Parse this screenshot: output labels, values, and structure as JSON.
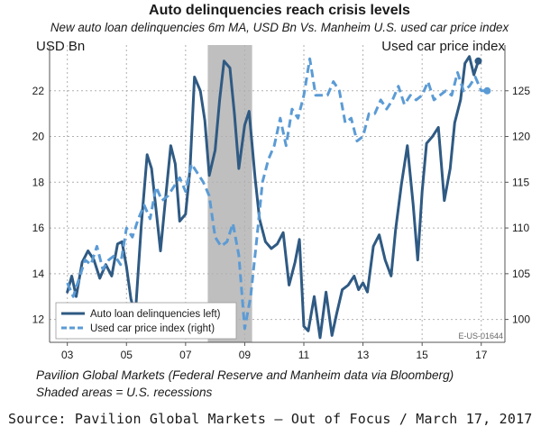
{
  "chart_data": {
    "type": "line",
    "title": "Auto delinquencies reach crisis levels",
    "subtitle": "New auto loan delinquencies 6m MA, USD Bn Vs. Manheim U.S. used car price index",
    "ylabel_left": "USD Bn",
    "ylabel_right": "Used car price index",
    "x_tick_labels": [
      "03",
      "05",
      "07",
      "09",
      "11",
      "13",
      "15",
      "17"
    ],
    "x_tick_values": [
      2003,
      2005,
      2007,
      2009,
      2011,
      2013,
      2015,
      2017
    ],
    "xlim": [
      2002.4,
      2017.8
    ],
    "ylim_left": [
      11,
      24
    ],
    "ylim_right": [
      97.5,
      130
    ],
    "y_left_ticks": [
      12,
      14,
      16,
      18,
      20,
      22
    ],
    "y_right_ticks": [
      100,
      105,
      110,
      115,
      120,
      125
    ],
    "recession": [
      2007.75,
      2009.25
    ],
    "grid": true,
    "legend_position": "bottom-left",
    "code_label": "E-US-01644",
    "series": [
      {
        "name": "Auto loan delinquencies left)",
        "axis": "left",
        "style": "solid",
        "color": "#2f5a83",
        "x": [
          2003.0,
          2003.15,
          2003.3,
          2003.5,
          2003.7,
          2003.9,
          2004.1,
          2004.3,
          2004.5,
          2004.7,
          2004.85,
          2005.0,
          2005.15,
          2005.3,
          2005.5,
          2005.7,
          2005.85,
          2006.0,
          2006.15,
          2006.3,
          2006.5,
          2006.65,
          2006.8,
          2007.0,
          2007.15,
          2007.3,
          2007.5,
          2007.65,
          2007.8,
          2008.0,
          2008.15,
          2008.3,
          2008.5,
          2008.65,
          2008.8,
          2009.0,
          2009.15,
          2009.35,
          2009.5,
          2009.7,
          2009.9,
          2010.1,
          2010.3,
          2010.5,
          2010.7,
          2010.85,
          2011.0,
          2011.15,
          2011.35,
          2011.55,
          2011.75,
          2011.95,
          2012.1,
          2012.3,
          2012.5,
          2012.7,
          2012.85,
          2013.0,
          2013.15,
          2013.35,
          2013.55,
          2013.75,
          2013.95,
          2014.1,
          2014.3,
          2014.5,
          2014.7,
          2014.85,
          2015.0,
          2015.15,
          2015.35,
          2015.55,
          2015.75,
          2015.95,
          2016.1,
          2016.3,
          2016.45,
          2016.6,
          2016.75,
          2016.9
        ],
        "values": [
          13.2,
          13.9,
          13.0,
          14.5,
          15.0,
          14.6,
          13.8,
          14.4,
          13.9,
          15.3,
          15.4,
          14.3,
          12.9,
          12.2,
          16.1,
          19.2,
          18.6,
          16.8,
          15.0,
          17.0,
          19.6,
          18.8,
          16.3,
          16.6,
          18.6,
          22.6,
          22.0,
          20.7,
          18.3,
          19.4,
          21.6,
          23.3,
          23.0,
          21.0,
          18.6,
          20.5,
          21.1,
          18.2,
          16.4,
          15.4,
          15.1,
          15.3,
          15.8,
          13.5,
          14.5,
          15.5,
          11.7,
          11.5,
          13.0,
          11.2,
          13.2,
          11.3,
          12.2,
          13.3,
          13.5,
          13.9,
          13.3,
          13.6,
          13.2,
          15.2,
          15.7,
          14.6,
          13.9,
          15.9,
          17.9,
          19.6,
          17.0,
          14.6,
          17.6,
          19.7,
          20.0,
          20.4,
          17.2,
          18.6,
          20.6,
          21.6,
          23.2,
          23.5,
          22.7,
          23.3
        ],
        "end_marker": true
      },
      {
        "name": "Used car price index (right)",
        "axis": "right",
        "style": "dashed",
        "color": "#5b9bd5",
        "x": [
          2003.0,
          2003.2,
          2003.4,
          2003.6,
          2003.8,
          2004.0,
          2004.2,
          2004.4,
          2004.6,
          2004.8,
          2005.0,
          2005.2,
          2005.4,
          2005.6,
          2005.8,
          2006.0,
          2006.2,
          2006.4,
          2006.6,
          2006.8,
          2007.0,
          2007.2,
          2007.4,
          2007.6,
          2007.8,
          2008.0,
          2008.2,
          2008.4,
          2008.6,
          2008.8,
          2009.0,
          2009.2,
          2009.4,
          2009.6,
          2009.8,
          2010.0,
          2010.2,
          2010.4,
          2010.6,
          2010.8,
          2011.0,
          2011.2,
          2011.4,
          2011.6,
          2011.8,
          2012.0,
          2012.2,
          2012.4,
          2012.6,
          2012.8,
          2013.0,
          2013.2,
          2013.4,
          2013.6,
          2013.8,
          2014.0,
          2014.2,
          2014.4,
          2014.6,
          2014.8,
          2015.0,
          2015.2,
          2015.4,
          2015.6,
          2015.8,
          2016.0,
          2016.2,
          2016.4,
          2016.6,
          2016.8,
          2017.0,
          2017.2
        ],
        "values": [
          104,
          102.5,
          104.5,
          106.5,
          106,
          108,
          105.5,
          106.5,
          107,
          106,
          110,
          109,
          111,
          112.5,
          111,
          114.5,
          113,
          113.5,
          114.5,
          115.5,
          114,
          117,
          116,
          115,
          113.5,
          109,
          108,
          108.5,
          110.5,
          107,
          99,
          102.5,
          108.5,
          115,
          117.5,
          119,
          122,
          119,
          123,
          122,
          124.5,
          128.5,
          124.5,
          124.5,
          124.5,
          126,
          125,
          121.5,
          122,
          119.5,
          120,
          122.5,
          122.5,
          124,
          123,
          124,
          125.5,
          123.5,
          124.5,
          124,
          124.5,
          126,
          124,
          124.5,
          125,
          124.5,
          127,
          125,
          125.5,
          126.5,
          125,
          125
        ],
        "end_marker": true
      }
    ]
  }
}
